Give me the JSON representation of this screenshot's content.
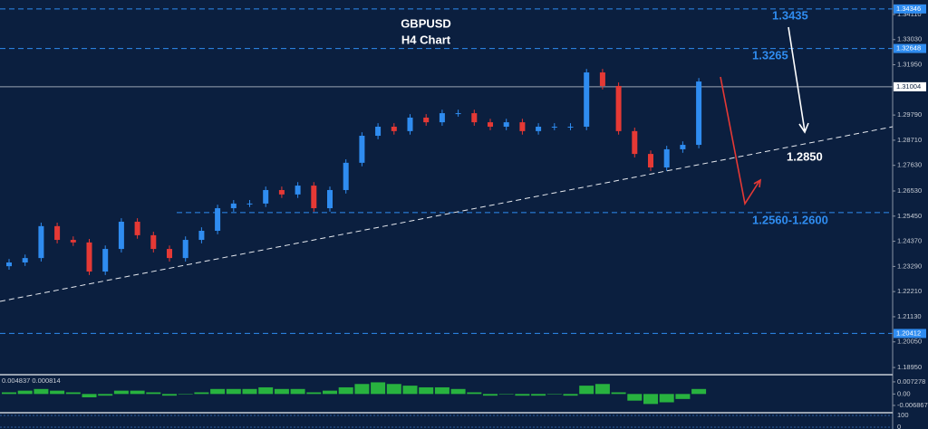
{
  "chart_data": {
    "type": "candlestick",
    "title": "GBPUSD",
    "subtitle": "H4 Chart",
    "annotations": [
      "1.3435",
      "1.3265",
      "1.2850",
      "1.2560-1.2600"
    ],
    "ylim": [
      1.1868,
      1.3473
    ],
    "yticks": [
      {
        "value": 1.3411,
        "label": "1.34110"
      },
      {
        "value": 1.3303,
        "label": "1.33030"
      },
      {
        "value": 1.3195,
        "label": "1.31950"
      },
      {
        "value": 1.2979,
        "label": "1.29790"
      },
      {
        "value": 1.2871,
        "label": "1.28710"
      },
      {
        "value": 1.2763,
        "label": "1.27630"
      },
      {
        "value": 1.2653,
        "label": "1.26530"
      },
      {
        "value": 1.2545,
        "label": "1.25450"
      },
      {
        "value": 1.2437,
        "label": "1.24370"
      },
      {
        "value": 1.2329,
        "label": "1.23290"
      },
      {
        "value": 1.2221,
        "label": "1.22210"
      },
      {
        "value": 1.2113,
        "label": "1.21130"
      },
      {
        "value": 1.2005,
        "label": "1.20050"
      },
      {
        "value": 1.1895,
        "label": "1.18950"
      }
    ],
    "levels": [
      {
        "value": 1.34346,
        "label": "1.34346"
      },
      {
        "value": 1.32648,
        "label": "1.32648"
      },
      {
        "value": 1.31004,
        "label": "1.31004"
      },
      {
        "value": 1.256
      },
      {
        "value": 1.20412,
        "label": "1.20412"
      }
    ],
    "up_color": "#2f8cf0",
    "down_color": "#e53935",
    "candles": [
      [
        1.233,
        1.2361,
        1.2315,
        1.2346
      ],
      [
        1.2346,
        1.238,
        1.2331,
        1.2365
      ],
      [
        1.2365,
        1.2517,
        1.235,
        1.2502
      ],
      [
        1.2502,
        1.2517,
        1.2428,
        1.2443
      ],
      [
        1.2443,
        1.2458,
        1.2417,
        1.2432
      ],
      [
        1.2432,
        1.2447,
        1.2292,
        1.2307
      ],
      [
        1.2307,
        1.2419,
        1.2292,
        1.2404
      ],
      [
        1.2404,
        1.2536,
        1.2389,
        1.2521
      ],
      [
        1.2521,
        1.2536,
        1.2448,
        1.2463
      ],
      [
        1.2463,
        1.2478,
        1.2389,
        1.2404
      ],
      [
        1.2404,
        1.2419,
        1.235,
        1.2365
      ],
      [
        1.2365,
        1.2458,
        1.235,
        1.2443
      ],
      [
        1.2443,
        1.2497,
        1.2428,
        1.2482
      ],
      [
        1.2482,
        1.2594,
        1.2467,
        1.2579
      ],
      [
        1.2579,
        1.2614,
        1.2564,
        1.2599
      ],
      [
        1.2599,
        1.2614,
        1.2584,
        1.2599
      ],
      [
        1.2599,
        1.2672,
        1.2584,
        1.2657
      ],
      [
        1.2657,
        1.2672,
        1.2623,
        1.2638
      ],
      [
        1.2638,
        1.2691,
        1.2623,
        1.2676
      ],
      [
        1.2676,
        1.2691,
        1.2564,
        1.2579
      ],
      [
        1.2579,
        1.2672,
        1.2564,
        1.2657
      ],
      [
        1.2657,
        1.2789,
        1.2642,
        1.2774
      ],
      [
        1.2774,
        1.2905,
        1.2759,
        1.289
      ],
      [
        1.289,
        1.2944,
        1.2875,
        1.2929
      ],
      [
        1.2929,
        1.2944,
        1.2895,
        1.291
      ],
      [
        1.291,
        1.2983,
        1.2895,
        1.2968
      ],
      [
        1.2968,
        1.2983,
        1.2933,
        1.2948
      ],
      [
        1.2948,
        1.3002,
        1.2933,
        1.2987
      ],
      [
        1.2987,
        1.3002,
        1.2972,
        1.2987
      ],
      [
        1.2987,
        1.3002,
        1.2933,
        1.2948
      ],
      [
        1.2948,
        1.2963,
        1.2914,
        1.2929
      ],
      [
        1.2929,
        1.2963,
        1.2914,
        1.2948
      ],
      [
        1.2948,
        1.2963,
        1.2895,
        1.291
      ],
      [
        1.291,
        1.2944,
        1.2895,
        1.2929
      ],
      [
        1.2929,
        1.2944,
        1.2914,
        1.2929
      ],
      [
        1.2929,
        1.2944,
        1.2914,
        1.2929
      ],
      [
        1.2929,
        1.3177,
        1.2914,
        1.3162
      ],
      [
        1.3162,
        1.3177,
        1.3089,
        1.3104
      ],
      [
        1.3104,
        1.3119,
        1.2895,
        1.291
      ],
      [
        1.291,
        1.2925,
        1.2797,
        1.2812
      ],
      [
        1.2812,
        1.2827,
        1.2739,
        1.2754
      ],
      [
        1.2754,
        1.2847,
        1.2739,
        1.2832
      ],
      [
        1.2832,
        1.2866,
        1.2817,
        1.2851
      ],
      [
        1.2851,
        1.3138,
        1.2836,
        1.3123
      ]
    ],
    "macd": {
      "label": "0.004837 0.000814",
      "color": "#2ecc40",
      "ylim": [
        -0.0107,
        0.0105
      ],
      "yticks": [
        {
          "value": 0.007278,
          "label": "0.007278"
        },
        {
          "value": 0,
          "label": "0.00"
        },
        {
          "value": -0.006867,
          "label": "-0.006867"
        }
      ],
      "values": [
        0.001,
        0.002,
        0.003,
        0.002,
        0.001,
        -0.002,
        -0.001,
        0.002,
        0.002,
        0.001,
        -0.001,
        0.0,
        0.001,
        0.003,
        0.003,
        0.003,
        0.004,
        0.003,
        0.003,
        0.001,
        0.002,
        0.004,
        0.006,
        0.007,
        0.006,
        0.005,
        0.004,
        0.004,
        0.003,
        0.001,
        -0.001,
        0.0,
        -0.001,
        -0.001,
        0.0,
        -0.001,
        0.005,
        0.006,
        0.001,
        -0.004,
        -0.006,
        -0.005,
        -0.003,
        0.003
      ]
    },
    "oscillator": {
      "ylim": [
        0,
        100
      ],
      "yticks": [
        100,
        0
      ]
    }
  }
}
